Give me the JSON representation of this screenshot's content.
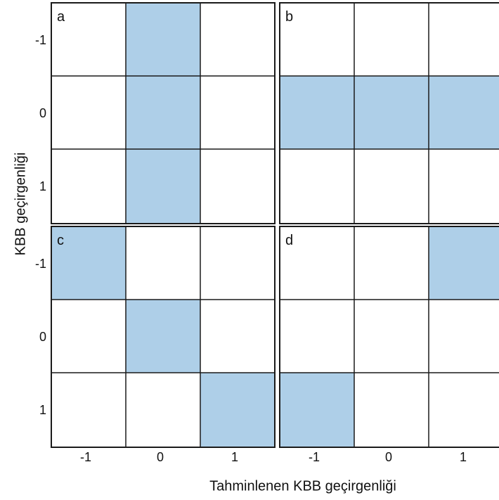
{
  "y_axis_title": "KBB geçirgenliği",
  "x_axis_title": "Tahminlenen KBB geçirgenliği",
  "row_tick_labels": [
    "-1",
    "0",
    "1"
  ],
  "col_tick_labels": [
    "-1",
    "0",
    "1"
  ],
  "colors": {
    "fill": "#aecfe8",
    "line": "#1a1a1a",
    "background": "#ffffff"
  },
  "panels": [
    {
      "label": "a",
      "filled": [
        [
          0,
          1
        ],
        [
          1,
          1
        ],
        [
          2,
          1
        ]
      ]
    },
    {
      "label": "b",
      "filled": [
        [
          1,
          0
        ],
        [
          1,
          1
        ],
        [
          1,
          2
        ]
      ]
    },
    {
      "label": "c",
      "filled": [
        [
          0,
          0
        ],
        [
          1,
          1
        ],
        [
          2,
          2
        ]
      ]
    },
    {
      "label": "d",
      "filled": [
        [
          0,
          2
        ],
        [
          2,
          0
        ]
      ]
    }
  ]
}
